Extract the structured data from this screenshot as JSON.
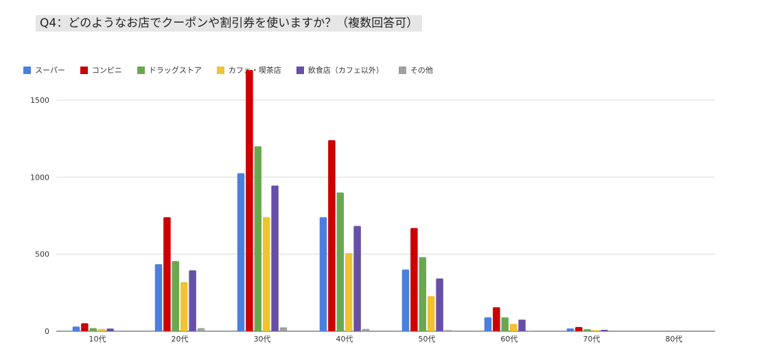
{
  "header": {
    "title": "Q4：どのようなお店でクーポンや割引券を使いますか？（複数回答可）"
  },
  "chart_data": {
    "type": "bar",
    "title": "Q4：どのようなお店でクーポンや割引券を使いますか？（複数回答可）",
    "categories": [
      "10代",
      "20代",
      "30代",
      "40代",
      "50代",
      "60代",
      "70代",
      "80代"
    ],
    "series": [
      {
        "name": "スーパー",
        "color": "#4a7fe0",
        "values": [
          30,
          435,
          1025,
          740,
          400,
          90,
          18,
          0
        ]
      },
      {
        "name": "コンビニ",
        "color": "#cc0000",
        "values": [
          52,
          740,
          1695,
          1240,
          670,
          155,
          27,
          0
        ]
      },
      {
        "name": "ドラッグストア",
        "color": "#6aa84f",
        "values": [
          20,
          455,
          1200,
          900,
          480,
          90,
          13,
          0
        ]
      },
      {
        "name": "カフェ・喫茶店",
        "color": "#f1c232",
        "values": [
          15,
          318,
          740,
          507,
          228,
          48,
          7,
          0
        ]
      },
      {
        "name": "飲食店（カフェ以外）",
        "color": "#674ea7",
        "values": [
          17,
          395,
          945,
          683,
          342,
          75,
          9,
          0
        ]
      },
      {
        "name": "その他",
        "color": "#a0a0a0",
        "values": [
          0,
          20,
          25,
          15,
          7,
          1,
          0,
          0
        ]
      }
    ],
    "ylim": [
      0,
      1700
    ],
    "yticks": [
      0,
      500,
      1000,
      1500
    ],
    "grid": true,
    "legend_position": "top-left",
    "xlabel": "",
    "ylabel": ""
  }
}
